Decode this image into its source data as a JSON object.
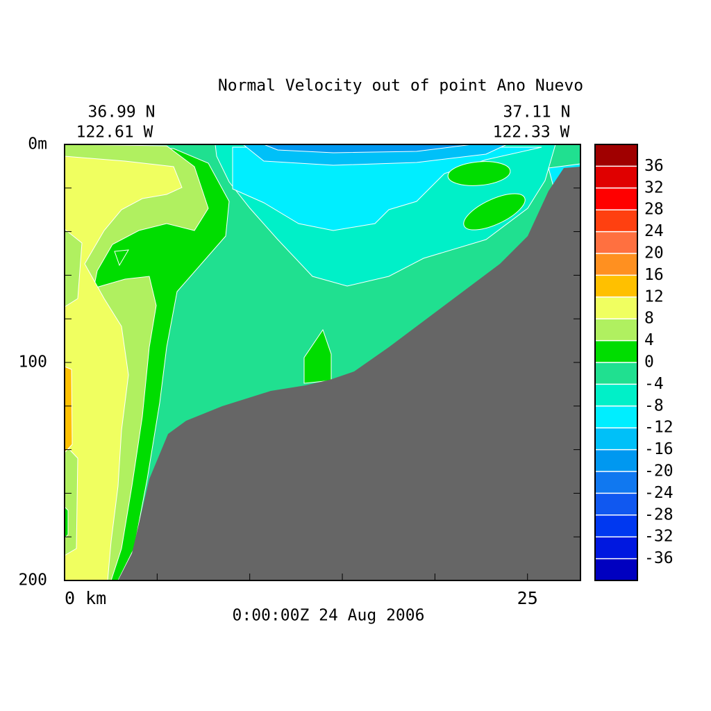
{
  "chart_data": {
    "type": "contour",
    "title": "Normal Velocity out of point Ano Nuevo",
    "left_lat": "36.99 N",
    "left_lon": "122.61 W",
    "right_lat": "37.11 N",
    "right_lon": "122.33 W",
    "time_label": "0:00:00Z  24 Aug 2006",
    "xlim": [
      0,
      27.86
    ],
    "xticks": [
      {
        "value": 0,
        "label": "0 km"
      },
      25
    ],
    "xminorticks": [
      5,
      10,
      15,
      20
    ],
    "ylim": [
      0,
      200
    ],
    "yticks": [
      {
        "value": 0,
        "label": "0m"
      },
      100,
      200
    ],
    "yminorticks": [
      20,
      40,
      60,
      80,
      120,
      140,
      160,
      180
    ],
    "clim": [
      -40,
      40
    ],
    "levels": [
      -36,
      -32,
      -28,
      -24,
      -20,
      -16,
      -12,
      -8,
      -4,
      0,
      4,
      8,
      12,
      16,
      20,
      24,
      28,
      32,
      36
    ],
    "colors": [
      "#0000c0",
      "#0018e0",
      "#0038f0",
      "#1058f0",
      "#1078f0",
      "#0098f0",
      "#00c0f8",
      "#00eeff",
      "#00f0c8",
      "#20e090",
      "#00dd00",
      "#b0f060",
      "#f0ff60",
      "#ffc000",
      "#ff9020",
      "#ff7040",
      "#ff4010",
      "#ff0000",
      "#e00000",
      "#a00000"
    ]
  }
}
